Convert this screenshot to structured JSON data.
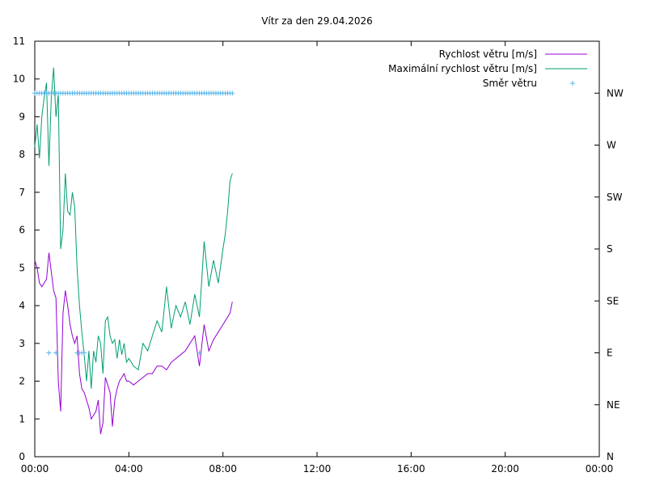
{
  "chart_data": {
    "type": "line",
    "title": "Vítr za den 29.04.2026",
    "xlabel": "",
    "ylabel": "",
    "x_axis": {
      "unit": "hours",
      "range": [
        0,
        24
      ],
      "tick_values": [
        0,
        4,
        8,
        12,
        16,
        20,
        24
      ],
      "tick_labels": [
        "00:00",
        "04:00",
        "08:00",
        "12:00",
        "16:00",
        "20:00",
        "00:00"
      ]
    },
    "y_axis": {
      "range": [
        0,
        11
      ],
      "tick_values": [
        0,
        1,
        2,
        3,
        4,
        5,
        6,
        7,
        8,
        9,
        10,
        11
      ],
      "tick_labels": [
        "0",
        "1",
        "2",
        "3",
        "4",
        "5",
        "6",
        "7",
        "8",
        "9",
        "10",
        "11"
      ]
    },
    "y2_axis": {
      "range": [
        0,
        360
      ],
      "tick_values": [
        0,
        45,
        90,
        135,
        180,
        225,
        270,
        315
      ],
      "tick_labels": [
        "N",
        "NE",
        "E",
        "SE",
        "S",
        "SW",
        "W",
        "NW"
      ]
    },
    "grid": false,
    "legend_position": "top-right",
    "series": [
      {
        "name": "Rychlost větru [m/s]",
        "color": "#9400d3",
        "style": "line",
        "axis": "y",
        "x": [
          0.0,
          0.1,
          0.2,
          0.3,
          0.4,
          0.5,
          0.6,
          0.7,
          0.8,
          0.9,
          1.0,
          1.1,
          1.2,
          1.3,
          1.4,
          1.5,
          1.6,
          1.7,
          1.8,
          1.9,
          2.0,
          2.1,
          2.2,
          2.3,
          2.4,
          2.5,
          2.6,
          2.7,
          2.8,
          2.9,
          3.0,
          3.1,
          3.2,
          3.3,
          3.4,
          3.5,
          3.6,
          3.7,
          3.8,
          3.9,
          4.0,
          4.2,
          4.4,
          4.6,
          4.8,
          5.0,
          5.2,
          5.4,
          5.6,
          5.8,
          6.0,
          6.2,
          6.4,
          6.6,
          6.8,
          7.0,
          7.2,
          7.4,
          7.6,
          7.8,
          8.0,
          8.1,
          8.2,
          8.3,
          8.4
        ],
        "y": [
          5.2,
          5.0,
          4.6,
          4.5,
          4.6,
          4.7,
          5.4,
          4.9,
          4.4,
          4.2,
          2.0,
          1.2,
          3.8,
          4.4,
          4.0,
          3.5,
          3.2,
          3.0,
          3.2,
          2.2,
          1.8,
          1.7,
          1.5,
          1.3,
          1.0,
          1.1,
          1.2,
          1.5,
          0.6,
          0.9,
          2.1,
          1.9,
          1.7,
          0.8,
          1.5,
          1.8,
          2.0,
          2.1,
          2.2,
          2.0,
          2.0,
          1.9,
          2.0,
          2.1,
          2.2,
          2.2,
          2.4,
          2.4,
          2.3,
          2.5,
          2.6,
          2.7,
          2.8,
          3.0,
          3.2,
          2.4,
          3.5,
          2.8,
          3.1,
          3.3,
          3.5,
          3.6,
          3.7,
          3.8,
          4.1
        ]
      },
      {
        "name": "Maximální rychlost větru [m/s]",
        "color": "#009e73",
        "style": "line",
        "axis": "y",
        "x": [
          0.0,
          0.1,
          0.2,
          0.3,
          0.4,
          0.5,
          0.6,
          0.7,
          0.8,
          0.9,
          1.0,
          1.1,
          1.2,
          1.3,
          1.4,
          1.5,
          1.6,
          1.7,
          1.8,
          1.9,
          2.0,
          2.1,
          2.2,
          2.3,
          2.4,
          2.5,
          2.6,
          2.7,
          2.8,
          2.9,
          3.0,
          3.1,
          3.2,
          3.3,
          3.4,
          3.5,
          3.6,
          3.7,
          3.8,
          3.9,
          4.0,
          4.2,
          4.4,
          4.6,
          4.8,
          5.0,
          5.2,
          5.4,
          5.6,
          5.8,
          6.0,
          6.2,
          6.4,
          6.6,
          6.8,
          7.0,
          7.2,
          7.4,
          7.6,
          7.8,
          8.0,
          8.1,
          8.2,
          8.3,
          8.4
        ],
        "y": [
          8.2,
          8.8,
          7.9,
          9.0,
          9.5,
          9.9,
          7.7,
          9.5,
          10.3,
          9.0,
          9.6,
          5.5,
          6.0,
          7.5,
          6.5,
          6.4,
          7.0,
          6.6,
          5.0,
          4.0,
          3.3,
          2.7,
          2.0,
          2.8,
          1.8,
          2.8,
          2.5,
          3.2,
          3.0,
          2.2,
          3.6,
          3.7,
          3.2,
          3.0,
          3.1,
          2.6,
          3.1,
          2.7,
          3.0,
          2.5,
          2.6,
          2.4,
          2.3,
          3.0,
          2.8,
          3.2,
          3.6,
          3.3,
          4.5,
          3.4,
          4.0,
          3.7,
          4.1,
          3.5,
          4.3,
          3.7,
          5.7,
          4.5,
          5.2,
          4.6,
          5.5,
          5.9,
          6.5,
          7.3,
          7.5
        ]
      },
      {
        "name": "Směr větru",
        "color": "#56b4e9",
        "style": "points",
        "axis": "y2",
        "x": [
          0.0,
          0.1,
          0.2,
          0.3,
          0.4,
          0.5,
          0.6,
          0.7,
          0.8,
          0.9,
          1.0,
          1.1,
          1.2,
          1.3,
          1.4,
          1.5,
          1.6,
          1.7,
          1.8,
          1.9,
          2.0,
          2.1,
          2.2,
          2.3,
          2.4,
          2.5,
          2.6,
          2.7,
          2.8,
          2.9,
          3.0,
          3.1,
          3.2,
          3.3,
          3.4,
          3.5,
          3.6,
          3.7,
          3.8,
          3.9,
          4.0,
          4.1,
          4.2,
          4.3,
          4.4,
          4.5,
          4.6,
          4.7,
          4.8,
          4.9,
          5.0,
          5.1,
          5.2,
          5.3,
          5.4,
          5.5,
          5.6,
          5.7,
          5.8,
          5.9,
          6.0,
          6.1,
          6.2,
          6.3,
          6.4,
          6.5,
          6.6,
          6.7,
          6.8,
          6.9,
          7.0,
          7.1,
          7.2,
          7.3,
          7.4,
          7.5,
          7.6,
          7.7,
          7.8,
          7.9,
          8.0,
          8.1,
          8.2,
          8.3,
          8.4,
          0.6,
          0.9,
          1.8,
          1.9,
          2.0,
          2.1,
          7.0
        ],
        "y": [
          315,
          315,
          315,
          315,
          315,
          315,
          315,
          315,
          315,
          315,
          315,
          315,
          315,
          315,
          315,
          315,
          315,
          315,
          315,
          315,
          315,
          315,
          315,
          315,
          315,
          315,
          315,
          315,
          315,
          315,
          315,
          315,
          315,
          315,
          315,
          315,
          315,
          315,
          315,
          315,
          315,
          315,
          315,
          315,
          315,
          315,
          315,
          315,
          315,
          315,
          315,
          315,
          315,
          315,
          315,
          315,
          315,
          315,
          315,
          315,
          315,
          315,
          315,
          315,
          315,
          315,
          315,
          315,
          315,
          315,
          315,
          315,
          315,
          315,
          315,
          315,
          315,
          315,
          315,
          315,
          315,
          315,
          315,
          315,
          315,
          90,
          90,
          90,
          90,
          90,
          90,
          90
        ]
      }
    ]
  }
}
